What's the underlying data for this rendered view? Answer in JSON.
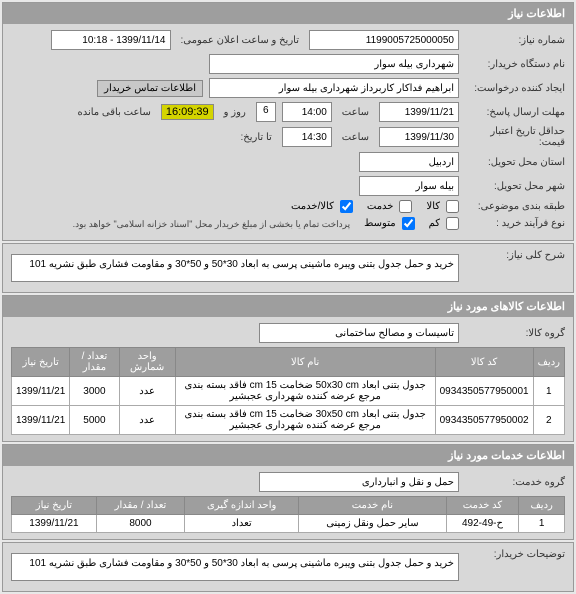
{
  "panel1": {
    "title": "اطلاعات نیاز",
    "need_number_lbl": "شماره نیاز:",
    "need_number": "1199005725000050",
    "announce_lbl": "تاریخ و ساعت اعلان عمومی:",
    "announce": "1399/11/14 - 10:18",
    "buyer_lbl": "نام دستگاه خریدار:",
    "buyer": "شهرداری بیله سوار",
    "creator_lbl": "ایجاد کننده درخواست:",
    "creator": "ابراهیم فداکار کاربرداز شهرداری بیله سوار",
    "creator_btn": "اطلاعات تماس خریدار",
    "deadline_lbl": "مهلت ارسال پاسخ:",
    "deadline_date": "1399/11/21",
    "time_lbl": "ساعت",
    "deadline_time": "14:00",
    "remain_lbl": "ساعت باقی مانده",
    "remain_time": "16:09:39",
    "remain_days": "6",
    "day_lbl": "روز و",
    "valid_lbl": "حداقل تاریخ اعتبار قیمت:",
    "valid_date": "1399/11/30",
    "valid_time": "14:30",
    "end_lbl": "تا تاریخ:",
    "state_lbl": "استان محل تحویل:",
    "state": "اردبیل",
    "city_lbl": "شهر محل تحویل:",
    "city": "بیله سوار",
    "class_lbl": "طبقه بندی موضوعی:",
    "class_goods": "کالا",
    "class_service": "خدمت",
    "class_mix": "کالا/خدمت",
    "process_lbl": "نوع فرآیند خرید :",
    "process_low": "کم",
    "process_mid": "متوسط",
    "process_note": "پرداخت تمام یا بخشی از مبلغ خریدار محل \"اسناد خزانه اسلامی\" خواهد بود."
  },
  "panel2": {
    "desc_lbl": "شرح کلی نیاز:",
    "desc": "خرید و حمل جدول بتنی ویبره ماشینی پرسی به ابعاد 30*50 و 50*30 و مقاومت فشاری طبق نشریه 101"
  },
  "panel3": {
    "title": "اطلاعات کالاهای مورد نیاز",
    "group_lbl": "گروه کالا:",
    "group": "تاسیسات و مصالح ساختمانی",
    "cols": [
      "ردیف",
      "کد کالا",
      "نام کالا",
      "واحد شمارش",
      "تعداد / مقدار",
      "تاریخ نیاز"
    ],
    "rows": [
      [
        "1",
        "0934350577950001",
        "جدول بتنی ابعاد 50x30 cm ضخامت 15 cm فاقد بسته بندی مرجع عرضه کننده شهرداری عجبشیر",
        "عدد",
        "3000",
        "1399/11/21"
      ],
      [
        "2",
        "0934350577950002",
        "جدول بتنی ابعاد 30x50 cm ضخامت 15 cm فاقد بسته بندی مرجع عرضه کننده شهرداری عجبشیر",
        "عدد",
        "5000",
        "1399/11/21"
      ]
    ]
  },
  "panel4": {
    "title": "اطلاعات خدمات مورد نیاز",
    "group_lbl": "گروه خدمت:",
    "group": "حمل و نقل و انبارداری",
    "cols": [
      "ردیف",
      "کد خدمت",
      "نام خدمت",
      "واحد اندازه گیری",
      "تعداد / مقدار",
      "تاریخ نیاز"
    ],
    "rows": [
      [
        "1",
        "ح-49-492",
        "سایر حمل ونقل زمینی",
        "تعداد",
        "8000",
        "1399/11/21"
      ]
    ]
  },
  "panel5": {
    "desc_lbl": "توضیحات خریدار:",
    "desc": "خرید و حمل جدول بتنی ویبره ماشینی پرسی به ابعاد 30*50 و 50*30 و مقاومت فشاری طبق نشریه 101"
  }
}
